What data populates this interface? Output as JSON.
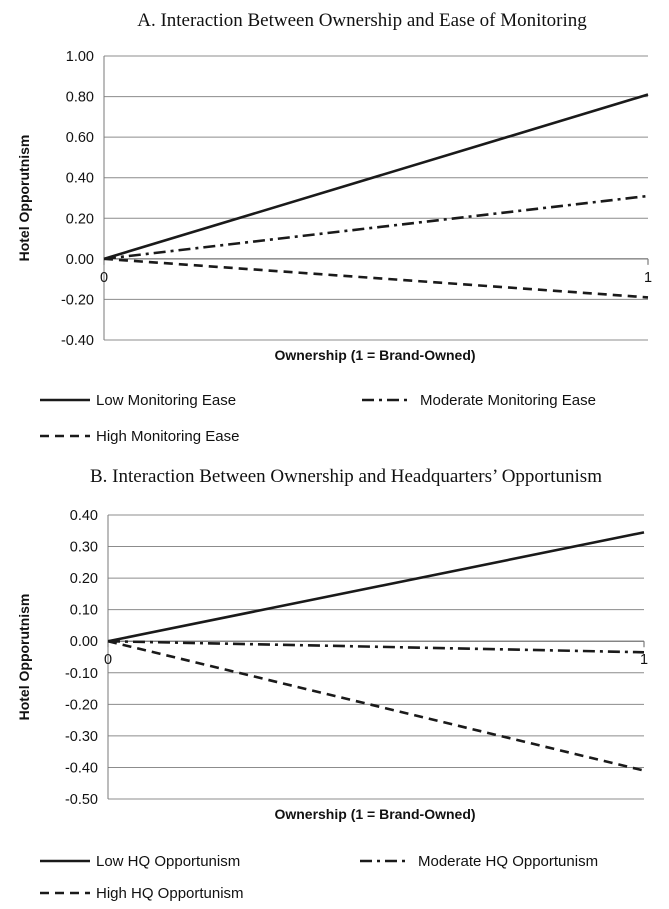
{
  "chart_data": [
    {
      "type": "line",
      "title": "A. Interaction Between Ownership and Ease of Monitoring",
      "xlabel": "Ownership (1 = Brand-Owned)",
      "ylabel": "Hotel Opporutnism",
      "x": [
        0,
        1
      ],
      "x_tick_labels": [
        "0",
        "1"
      ],
      "y_tick_labels": [
        "1.00",
        "0.80",
        "0.60",
        "0.40",
        "0.20",
        "0.00",
        "-0.20",
        "-0.40"
      ],
      "ylim": [
        -0.4,
        1.0
      ],
      "grid": true,
      "legend_position": "bottom",
      "series": [
        {
          "name": "Low Monitoring Ease",
          "style": "solid",
          "values": [
            0,
            0.81
          ]
        },
        {
          "name": "Moderate Monitoring Ease",
          "style": "dash-dot",
          "values": [
            0,
            0.31
          ]
        },
        {
          "name": "High Monitoring Ease",
          "style": "dashed",
          "values": [
            0,
            -0.19
          ]
        }
      ]
    },
    {
      "type": "line",
      "title": "B. Interaction Between Ownership and Headquarters’ Opportunism",
      "xlabel": "Ownership (1 = Brand-Owned)",
      "ylabel": "Hotel Opporutnism",
      "x": [
        0,
        1
      ],
      "x_tick_labels": [
        "0",
        "1"
      ],
      "y_tick_labels": [
        "0.40",
        "0.30",
        "0.20",
        "0.10",
        "0.00",
        "-0.10",
        "-0.20",
        "-0.30",
        "-0.40",
        "-0.50"
      ],
      "ylim": [
        -0.5,
        0.4
      ],
      "grid": true,
      "legend_position": "bottom",
      "series": [
        {
          "name": "Low HQ Opportunism",
          "style": "solid",
          "values": [
            0,
            0.345
          ]
        },
        {
          "name": "Moderate HQ Opportunism",
          "style": "dash-dot",
          "values": [
            0,
            -0.035
          ]
        },
        {
          "name": "High HQ Opportunism",
          "style": "dashed",
          "values": [
            0,
            -0.41
          ]
        }
      ]
    }
  ],
  "colors": {
    "line": "#1a1a1a",
    "grid": "#8c8c8c",
    "axis": "#7a7a7a"
  }
}
